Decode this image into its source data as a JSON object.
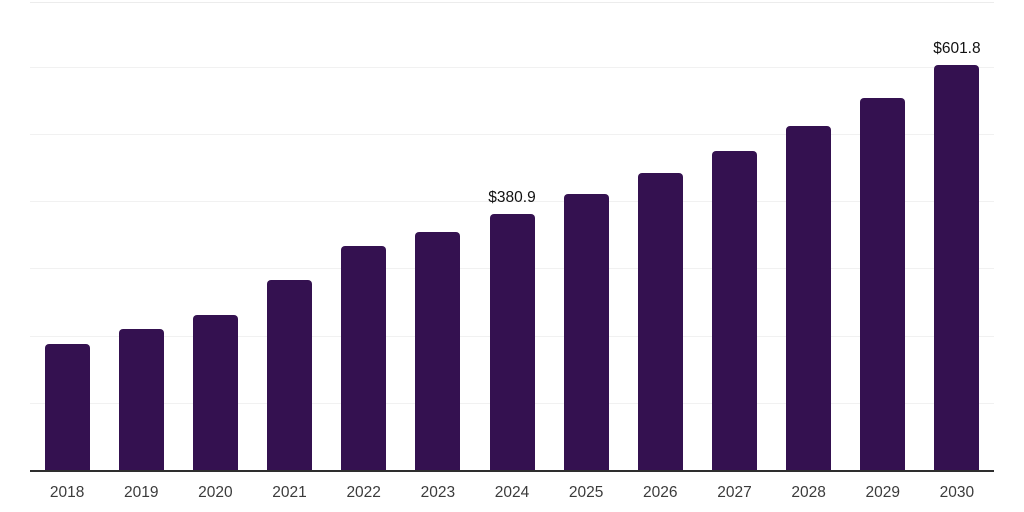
{
  "chart_data": {
    "type": "bar",
    "title": "",
    "xlabel": "",
    "ylabel": "",
    "categories": [
      "2018",
      "2019",
      "2020",
      "2021",
      "2022",
      "2023",
      "2024",
      "2025",
      "2026",
      "2027",
      "2028",
      "2029",
      "2030"
    ],
    "values": [
      187,
      209,
      230,
      283,
      333,
      354,
      380.9,
      410,
      441,
      475,
      511,
      553,
      601.8
    ],
    "value_labels": [
      "",
      "",
      "",
      "",
      "",
      "",
      "$380.9",
      "",
      "",
      "",
      "",
      "",
      "$601.8"
    ],
    "ylim": [
      0,
      696
    ],
    "y_gridline_interval": 100,
    "y_tick_labels_visible": false,
    "grid": "horizontal",
    "legend": "none",
    "colors": {
      "bar": "#341150",
      "axis_line": "#2e2e2e",
      "gridline": "#f1f1f1",
      "value_label": "#111111",
      "tick_label": "#3b3b3b",
      "background": "#ffffff"
    }
  }
}
